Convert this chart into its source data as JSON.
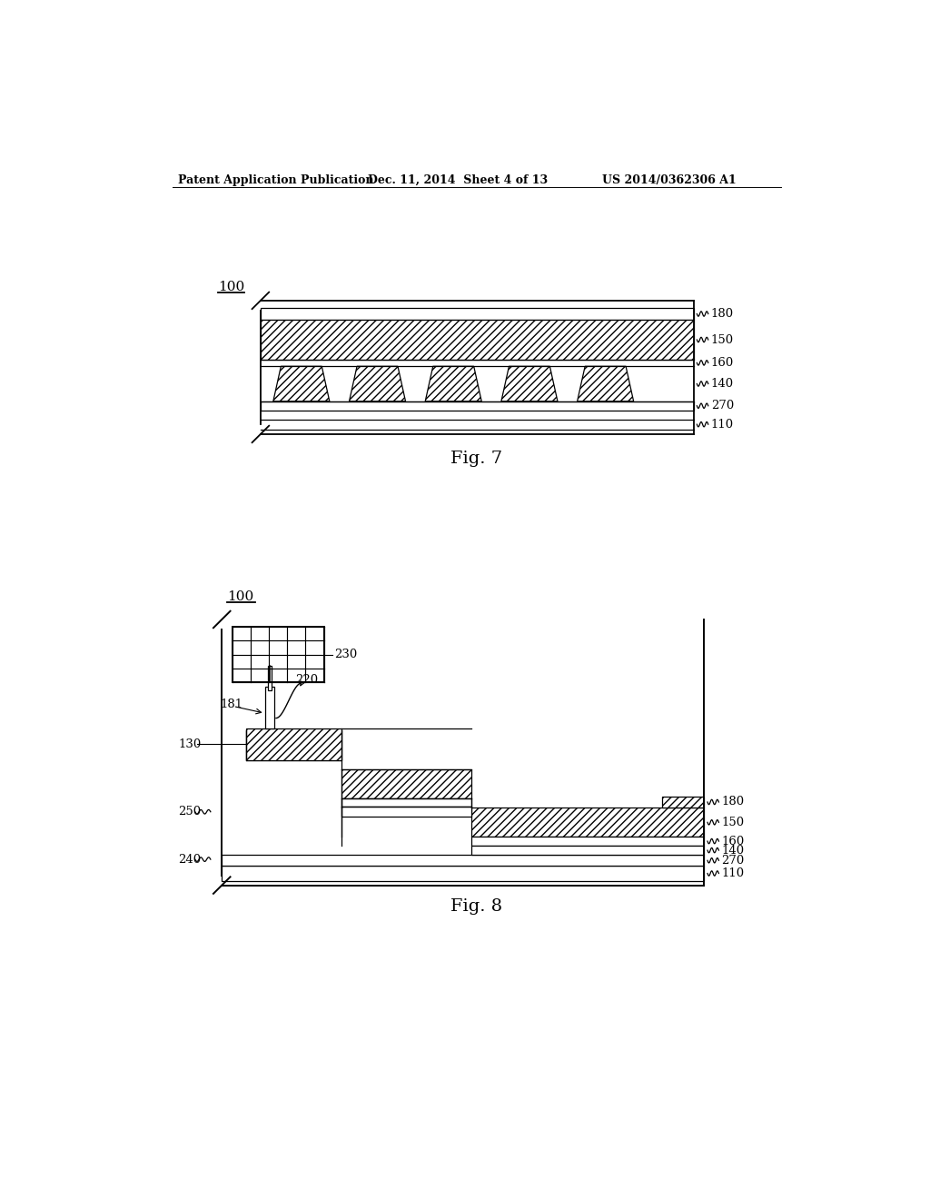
{
  "background_color": "#ffffff",
  "header_left": "Patent Application Publication",
  "header_mid": "Dec. 11, 2014  Sheet 4 of 13",
  "header_right": "US 2014/0362306 A1",
  "fig7_label": "Fig. 7",
  "fig8_label": "Fig. 8"
}
